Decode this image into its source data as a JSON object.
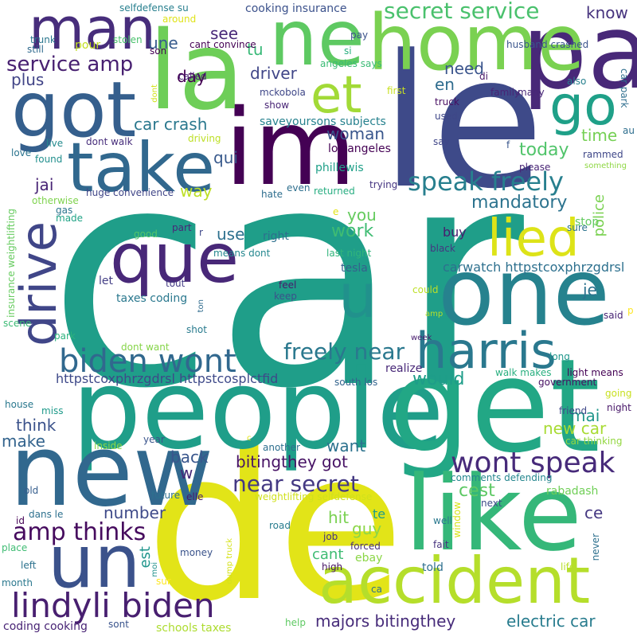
{
  "words": [
    {
      "text": "car",
      "color": "#1f9e89"
    },
    {
      "text": "le",
      "color": "#3e4a89"
    },
    {
      "text": "de",
      "color": "#e2e418"
    },
    {
      "text": "people",
      "color": "#1f9e89"
    },
    {
      "text": "get",
      "color": "#22a785"
    },
    {
      "text": "new",
      "color": "#31688e"
    },
    {
      "text": "im",
      "color": "#440154"
    },
    {
      "text": "pa",
      "color": "#482878"
    },
    {
      "text": "la",
      "color": "#6ece58"
    },
    {
      "text": "like",
      "color": "#35b779"
    },
    {
      "text": "one",
      "color": "#26828e"
    },
    {
      "text": "home",
      "color": "#7ad151"
    },
    {
      "text": "ne",
      "color": "#5ec962"
    },
    {
      "text": "man",
      "color": "#472d7b"
    },
    {
      "text": "take",
      "color": "#31688e"
    },
    {
      "text": "got",
      "color": "#355f8d"
    },
    {
      "text": "que",
      "color": "#482878"
    },
    {
      "text": "un",
      "color": "#3b528b"
    },
    {
      "text": "accident",
      "color": "#b5de2b"
    },
    {
      "text": "drive",
      "color": "#404688"
    },
    {
      "text": "harris",
      "color": "#2a788e"
    },
    {
      "text": "et",
      "color": "#a2da37"
    },
    {
      "text": "go",
      "color": "#1fa088"
    },
    {
      "text": "lied",
      "color": "#dde318"
    },
    {
      "text": "u",
      "color": "#21918c"
    },
    {
      "text": "biden wont",
      "color": "#31688e"
    },
    {
      "text": "lindyli biden",
      "color": "#481f70"
    },
    {
      "text": "secret service",
      "color": "#4ac16d"
    },
    {
      "text": "wont speak",
      "color": "#472a7a"
    },
    {
      "text": "speak freely",
      "color": "#277f8e"
    },
    {
      "text": "freely near",
      "color": "#2a788e"
    },
    {
      "text": "near secret",
      "color": "#443983"
    },
    {
      "text": "amp thinks",
      "color": "#460b5e"
    },
    {
      "text": "service amp",
      "color": "#482071"
    },
    {
      "text": "car crash",
      "color": "#2a788e"
    },
    {
      "text": "driver",
      "color": "#404688"
    },
    {
      "text": "woman",
      "color": "#39568c"
    },
    {
      "text": "today",
      "color": "#50c46a"
    },
    {
      "text": "mandatory",
      "color": "#2c738e"
    },
    {
      "text": "work",
      "color": "#3fbc73"
    },
    {
      "text": "would",
      "color": "#1e9d89"
    },
    {
      "text": "police",
      "color": "#7ad151"
    },
    {
      "text": "know",
      "color": "#46337e"
    },
    {
      "text": "need",
      "color": "#3a548c"
    },
    {
      "text": "time",
      "color": "#75d054"
    },
    {
      "text": "majors bitingthey",
      "color": "#472c7a"
    },
    {
      "text": "electric car",
      "color": "#287c8e"
    },
    {
      "text": "new car",
      "color": "#a8db34"
    },
    {
      "text": "bitingthey got",
      "color": "#471365"
    },
    {
      "text": "httpstcoxphrzgdrsl httpstcosplctfid",
      "color": "#3e4989"
    },
    {
      "text": "carwatch httpstcoxphrzgdrsl",
      "color": "#2d708e"
    },
    {
      "text": "jai",
      "color": "#482475"
    },
    {
      "text": "way",
      "color": "#bddf26"
    },
    {
      "text": "use",
      "color": "#2d708e"
    },
    {
      "text": "you",
      "color": "#65cb5e"
    },
    {
      "text": "qui",
      "color": "#38598c"
    },
    {
      "text": "tu",
      "color": "#38b977"
    },
    {
      "text": "see",
      "color": "#482878"
    },
    {
      "text": "day",
      "color": "#440154"
    },
    {
      "text": "une",
      "color": "#375b8d"
    },
    {
      "text": "plus",
      "color": "#414487"
    },
    {
      "text": "en",
      "color": "#2f6c8e"
    },
    {
      "text": "je",
      "color": "#2c728e"
    },
    {
      "text": "cest",
      "color": "#5cc863"
    },
    {
      "text": "mai",
      "color": "#1f968b"
    },
    {
      "text": "ce",
      "color": "#453882"
    },
    {
      "text": "think",
      "color": "#3b528b"
    },
    {
      "text": "make",
      "color": "#33638d"
    },
    {
      "text": "back",
      "color": "#39568c"
    },
    {
      "text": "want",
      "color": "#2c728e"
    },
    {
      "text": "w",
      "color": "#472878"
    },
    {
      "text": "number",
      "color": "#3e4a89"
    },
    {
      "text": "hit",
      "color": "#7ad151"
    },
    {
      "text": "te",
      "color": "#1e9b8a"
    },
    {
      "text": "guy",
      "color": "#8bd646"
    },
    {
      "text": "est",
      "color": "#1f958b"
    },
    {
      "text": "cant",
      "color": "#3fbc73"
    },
    {
      "text": "buy",
      "color": "#481d6f"
    },
    {
      "text": "tesla",
      "color": "#34618d"
    },
    {
      "text": "cooking insurance",
      "color": "#3b518b"
    },
    {
      "text": "selfdefense su",
      "color": "#277f8e"
    },
    {
      "text": "around",
      "color": "#dfe318"
    },
    {
      "text": "trunk",
      "color": "#2a768e"
    },
    {
      "text": "still",
      "color": "#306a8e"
    },
    {
      "text": "pour",
      "color": "#c2df23"
    },
    {
      "text": "stolen",
      "color": "#4ac16d"
    },
    {
      "text": "son",
      "color": "#440154"
    },
    {
      "text": "cant convince",
      "color": "#440154"
    },
    {
      "text": "pay",
      "color": "#3b528b"
    },
    {
      "text": "husband crashed",
      "color": "#3a548c"
    },
    {
      "text": "si",
      "color": "#29af7f"
    },
    {
      "text": "called",
      "color": "#482575"
    },
    {
      "text": "dont",
      "color": "#d2e21b"
    },
    {
      "text": "mckobola",
      "color": "#3f4788"
    },
    {
      "text": "angeles says",
      "color": "#3bbb75"
    },
    {
      "text": "di",
      "color": "#481668"
    },
    {
      "text": "first",
      "color": "#c8e020"
    },
    {
      "text": "many",
      "color": "#482677"
    },
    {
      "text": "family",
      "color": "#482475"
    },
    {
      "text": "also",
      "color": "#27808e"
    },
    {
      "text": "car park",
      "color": "#2e6e8e"
    },
    {
      "text": "show",
      "color": "#482475"
    },
    {
      "text": "truck",
      "color": "#470e61"
    },
    {
      "text": "used",
      "color": "#3f4788"
    },
    {
      "text": "saveyoursons subjects",
      "color": "#26818e"
    },
    {
      "text": "dont walk",
      "color": "#472d7b"
    },
    {
      "text": "live",
      "color": "#238a8d"
    },
    {
      "text": "love",
      "color": "#2b748e"
    },
    {
      "text": "found",
      "color": "#218f8d"
    },
    {
      "text": "driving",
      "color": "#bddf26"
    },
    {
      "text": "los angeles",
      "color": "#440154"
    },
    {
      "text": "say",
      "color": "#404688"
    },
    {
      "text": "f",
      "color": "#39568c"
    },
    {
      "text": "au",
      "color": "#2e6e8e"
    },
    {
      "text": "something",
      "color": "#8fd744"
    },
    {
      "text": "rammed",
      "color": "#3f4788"
    },
    {
      "text": "please",
      "color": "#482475"
    },
    {
      "text": "phillewis",
      "color": "#1fa088"
    },
    {
      "text": "huge convenience",
      "color": "#404688"
    },
    {
      "text": "even",
      "color": "#2e6f8e"
    },
    {
      "text": "hate",
      "color": "#2e6e8e"
    },
    {
      "text": "trying",
      "color": "#453581"
    },
    {
      "text": "returned",
      "color": "#27ad81"
    },
    {
      "text": "sure",
      "color": "#2c738e"
    },
    {
      "text": "otherwise",
      "color": "#7fd34e"
    },
    {
      "text": "gas",
      "color": "#2b758e"
    },
    {
      "text": "made",
      "color": "#20a386"
    },
    {
      "text": "e",
      "color": "#e2e418"
    },
    {
      "text": "stop",
      "color": "#63cb5f"
    },
    {
      "text": "insurance weightlifting",
      "color": "#65cb5e"
    },
    {
      "text": "good",
      "color": "#52c569"
    },
    {
      "text": "part",
      "color": "#482878"
    },
    {
      "text": "r",
      "color": "#3f4889"
    },
    {
      "text": "right",
      "color": "#2d708e"
    },
    {
      "text": "means dont",
      "color": "#24878e"
    },
    {
      "text": "last night",
      "color": "#31b57b"
    },
    {
      "text": "black",
      "color": "#453781"
    },
    {
      "text": "let",
      "color": "#433e85"
    },
    {
      "text": "tout",
      "color": "#443b84"
    },
    {
      "text": "feel",
      "color": "#481a6c"
    },
    {
      "text": "keep",
      "color": "#3b528b"
    },
    {
      "text": "could",
      "color": "#bddf26"
    },
    {
      "text": "taxes coding",
      "color": "#2a788e"
    },
    {
      "text": "ton",
      "color": "#2f6b8e"
    },
    {
      "text": "amp",
      "color": "#b5de2b"
    },
    {
      "text": "scene",
      "color": "#3bbb75"
    },
    {
      "text": "shot",
      "color": "#297b8e"
    },
    {
      "text": "said",
      "color": "#482475"
    },
    {
      "text": "p",
      "color": "#fde725"
    },
    {
      "text": "week",
      "color": "#481c6e"
    },
    {
      "text": "park",
      "color": "#2db27d"
    },
    {
      "text": "dont want",
      "color": "#86d549"
    },
    {
      "text": "realize",
      "color": "#482878"
    },
    {
      "text": "long",
      "color": "#1f968b"
    },
    {
      "text": "light means",
      "color": "#440154"
    },
    {
      "text": "walk makes",
      "color": "#29af7f"
    },
    {
      "text": "south los",
      "color": "#33638d"
    },
    {
      "text": "government",
      "color": "#471063"
    },
    {
      "text": "going",
      "color": "#c8e020"
    },
    {
      "text": "house",
      "color": "#2a788e"
    },
    {
      "text": "miss",
      "color": "#1f9a8a"
    },
    {
      "text": "friend",
      "color": "#3f4889"
    },
    {
      "text": "night",
      "color": "#481769"
    },
    {
      "text": "inside",
      "color": "#8bd646"
    },
    {
      "text": "year",
      "color": "#3a548c"
    },
    {
      "text": "c",
      "color": "#e5e419"
    },
    {
      "text": "another",
      "color": "#2e6f8e"
    },
    {
      "text": "car thinking",
      "color": "#93d741"
    },
    {
      "text": "old",
      "color": "#355e8d"
    },
    {
      "text": "comments defending",
      "color": "#24868e"
    },
    {
      "text": "window",
      "color": "#d8e219"
    },
    {
      "text": "rabadash",
      "color": "#70cf57"
    },
    {
      "text": "future",
      "color": "#2d708e"
    },
    {
      "text": "elle",
      "color": "#481a6c"
    },
    {
      "text": "weightlifting selfdefense",
      "color": "#d0e11c"
    },
    {
      "text": "dans le",
      "color": "#2d708e"
    },
    {
      "text": "road",
      "color": "#287c8e"
    },
    {
      "text": "next",
      "color": "#3e4a89"
    },
    {
      "text": "id",
      "color": "#440154"
    },
    {
      "text": "well",
      "color": "#2a788e"
    },
    {
      "text": "place",
      "color": "#3fbc73"
    },
    {
      "text": "job",
      "color": "#46327e"
    },
    {
      "text": "fait",
      "color": "#46337f"
    },
    {
      "text": "forced",
      "color": "#472f7d"
    },
    {
      "text": "never",
      "color": "#2d708e"
    },
    {
      "text": "money",
      "color": "#3a538b"
    },
    {
      "text": "moi",
      "color": "#21918c"
    },
    {
      "text": "dump truck",
      "color": "#d5e21a"
    },
    {
      "text": "high",
      "color": "#471365"
    },
    {
      "text": "left",
      "color": "#2c728e"
    },
    {
      "text": "sur",
      "color": "#fde725"
    },
    {
      "text": "ebay",
      "color": "#8bd646"
    },
    {
      "text": "told",
      "color": "#2e6f8e"
    },
    {
      "text": "life",
      "color": "#b8de29"
    },
    {
      "text": "month",
      "color": "#2a788e"
    },
    {
      "text": "ca",
      "color": "#2d708e"
    },
    {
      "text": "help",
      "color": "#5ec962"
    },
    {
      "text": "coding cooking",
      "color": "#482475"
    },
    {
      "text": "sont",
      "color": "#3a548c"
    },
    {
      "text": "schools taxes",
      "color": "#addc30"
    }
  ]
}
